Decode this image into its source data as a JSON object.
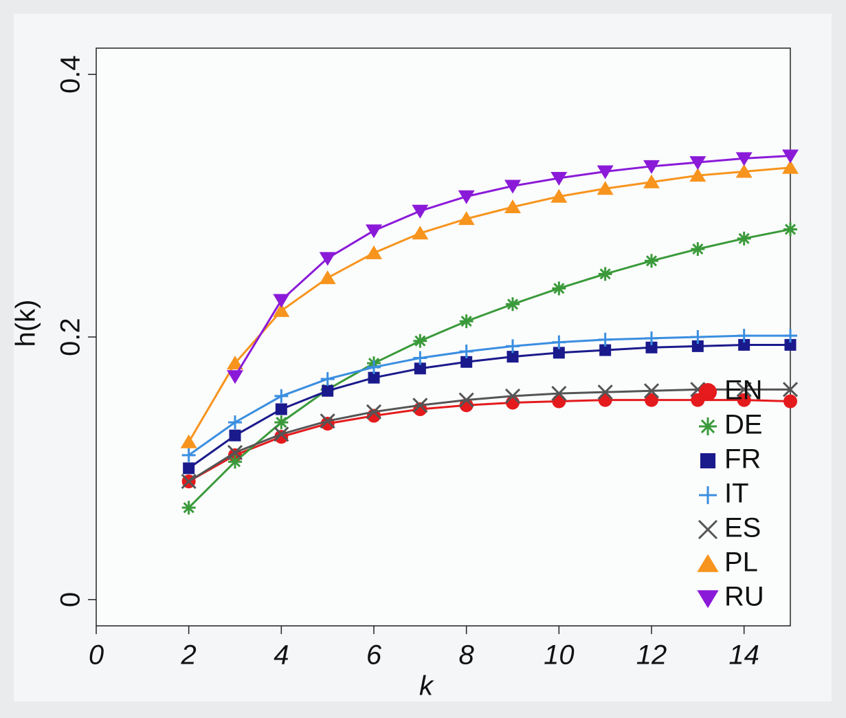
{
  "chart_data": {
    "type": "line",
    "x_label": "k",
    "y_label": "h(k)",
    "x": [
      2,
      3,
      4,
      5,
      6,
      7,
      8,
      9,
      10,
      11,
      12,
      13,
      14,
      15
    ],
    "xlim": [
      0,
      15
    ],
    "xticks": [
      0,
      2,
      4,
      6,
      8,
      10,
      12,
      14
    ],
    "ylim": [
      -0.02,
      0.42
    ],
    "yticks": [
      0,
      0.2,
      0.4
    ],
    "legend": "lower right",
    "series": [
      {
        "name": "EN",
        "color": "#e41a1c",
        "marker": "circle",
        "values": [
          0.09,
          0.11,
          0.124,
          0.134,
          0.14,
          0.145,
          0.148,
          0.15,
          0.151,
          0.152,
          0.152,
          0.152,
          0.152,
          0.151
        ]
      },
      {
        "name": "DE",
        "color": "#3a9a3a",
        "marker": "asterisk",
        "values": [
          0.07,
          0.105,
          0.135,
          0.16,
          0.18,
          0.197,
          0.212,
          0.225,
          0.237,
          0.248,
          0.258,
          0.267,
          0.275,
          0.282
        ]
      },
      {
        "name": "FR",
        "color": "#1a1a8c",
        "marker": "square",
        "values": [
          0.1,
          0.125,
          0.145,
          0.159,
          0.169,
          0.176,
          0.181,
          0.185,
          0.188,
          0.19,
          0.192,
          0.193,
          0.194,
          0.194
        ]
      },
      {
        "name": "IT",
        "color": "#3a8ee0",
        "marker": "plus",
        "values": [
          0.11,
          0.135,
          0.155,
          0.168,
          0.177,
          0.184,
          0.189,
          0.193,
          0.196,
          0.198,
          0.199,
          0.2,
          0.201,
          0.201
        ]
      },
      {
        "name": "ES",
        "color": "#555555",
        "marker": "x",
        "values": [
          0.09,
          0.112,
          0.126,
          0.136,
          0.143,
          0.148,
          0.152,
          0.155,
          0.157,
          0.158,
          0.159,
          0.16,
          0.16,
          0.16
        ]
      },
      {
        "name": "PL",
        "color": "#f7941d",
        "marker": "triangle-up",
        "values": [
          0.12,
          0.18,
          0.22,
          0.245,
          0.264,
          0.279,
          0.29,
          0.299,
          0.307,
          0.313,
          0.318,
          0.323,
          0.326,
          0.329
        ]
      },
      {
        "name": "RU",
        "color": "#8a1ad8",
        "marker": "triangle-down",
        "values": [
          null,
          0.17,
          0.228,
          0.26,
          0.281,
          0.296,
          0.307,
          0.315,
          0.321,
          0.326,
          0.33,
          0.333,
          0.336,
          0.338
        ]
      }
    ]
  }
}
